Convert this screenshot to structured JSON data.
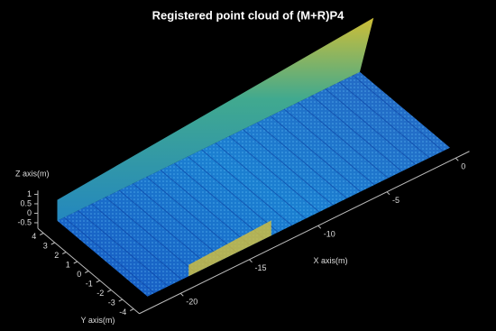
{
  "chart_data": {
    "type": "scatter3d",
    "title": "Registered point cloud of (M+R)P4",
    "xlabel": "X axis(m)",
    "ylabel": "Y axis(m)",
    "zlabel": "Z axis(m)",
    "xlim": [
      -23,
      1
    ],
    "ylim": [
      -4.5,
      4.5
    ],
    "zlim": [
      -0.8,
      1.2
    ],
    "xticks": [
      -20,
      -15,
      -10,
      -5,
      0
    ],
    "yticks": [
      -4,
      -3,
      -2,
      -1,
      0,
      1,
      2,
      3,
      4
    ],
    "zticks": [
      -0.5,
      0,
      0.5,
      1
    ]
  }
}
